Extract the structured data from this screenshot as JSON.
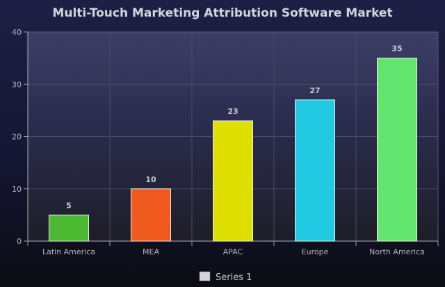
{
  "chart_data": {
    "type": "bar",
    "title": "Multi-Touch Marketing Attribution Software Market",
    "categories": [
      "Latin America",
      "MEA",
      "APAC",
      "Europe",
      "North America"
    ],
    "series": [
      {
        "name": "Series 1",
        "values": [
          5,
          10,
          23,
          27,
          35
        ],
        "colors": [
          "#4db832",
          "#f05a1e",
          "#dfe000",
          "#22c9e2",
          "#63e46e"
        ]
      }
    ],
    "ylim": [
      0,
      40
    ],
    "yticks": [
      "0",
      "10",
      "20",
      "30",
      "40"
    ],
    "data_labels": [
      "5",
      "10",
      "23",
      "27",
      "35"
    ],
    "grid": true,
    "legend": "bottom-center",
    "legend_swatch_color": "#d6d6d6"
  }
}
